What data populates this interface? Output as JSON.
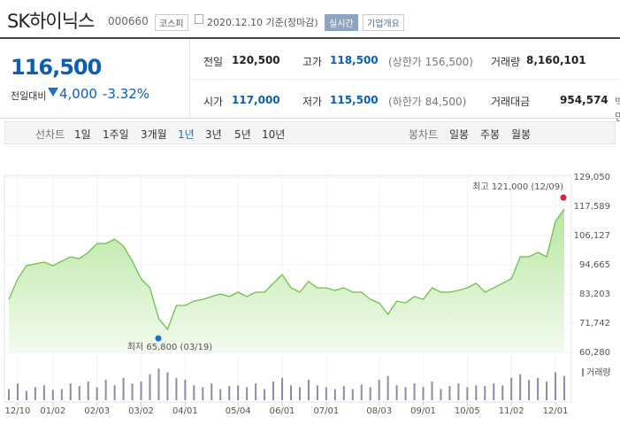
{
  "header": {
    "title": "SK하이닉스",
    "code": "000660",
    "market": "코스피",
    "date": "2020.12.10 기준(장마감)",
    "realtime": "실시간",
    "company": "기업개요"
  },
  "quote": {
    "price": "116,500",
    "change_label": "전일대비",
    "change": "4,000",
    "change_rate": "-3.32%",
    "items": [
      {
        "label": "전일",
        "value": "120,500"
      },
      {
        "label": "고가",
        "value": "118,500",
        "note": "(상한가 156,500)"
      },
      {
        "label": "거래량",
        "value": "8,160,101"
      },
      {
        "label": "시가",
        "value": "117,000"
      },
      {
        "label": "저가",
        "value": "115,500",
        "note": "(하한가 84,500)"
      },
      {
        "label": "거래대금",
        "value": "954,574",
        "note": "백만"
      }
    ]
  },
  "toolbar": {
    "line_label": "선차트",
    "line_periods": [
      "1일",
      "1주일",
      "3개월",
      "1년",
      "3년",
      "5년",
      "10년"
    ],
    "selected": "1년",
    "candle_label": "봉차트",
    "candle_periods": [
      "일봉",
      "주봉",
      "월봉"
    ]
  },
  "chart_data": [
    {
      "type": "line",
      "color": "#6cc04a",
      "categories": [
        null,
        "12/10",
        null,
        null,
        null,
        "01/02",
        null,
        null,
        null,
        null,
        "02/03",
        null,
        null,
        null,
        null,
        "03/02",
        null,
        null,
        null,
        null,
        "04/01",
        null,
        null,
        null,
        null,
        null,
        "05/04",
        null,
        null,
        null,
        null,
        "06/01",
        null,
        null,
        null,
        null,
        "07/01",
        null,
        null,
        null,
        null,
        null,
        "08/03",
        null,
        null,
        null,
        null,
        "09/01",
        null,
        null,
        null,
        null,
        "10/05",
        null,
        null,
        null,
        null,
        "11/02",
        null,
        null,
        null,
        null,
        "12/01",
        null
      ],
      "values": [
        81100,
        89100,
        94300,
        95000,
        95700,
        94300,
        96100,
        97800,
        97100,
        99500,
        103000,
        103000,
        104700,
        102000,
        96100,
        89100,
        85600,
        73500,
        69300,
        78700,
        78700,
        80400,
        81100,
        82200,
        83200,
        82200,
        83900,
        82200,
        83900,
        83900,
        87400,
        90800,
        85600,
        83900,
        88100,
        85600,
        85600,
        84600,
        85600,
        83900,
        83900,
        81100,
        79700,
        75200,
        80400,
        79700,
        82200,
        81100,
        85600,
        83900,
        83900,
        84600,
        85600,
        87400,
        83900,
        85600,
        87400,
        89100,
        97800,
        97800,
        99500,
        97800,
        111700,
        116500
      ],
      "ylim": [
        60280,
        129050
      ],
      "yticks": [
        {
          "value": 60280,
          "label": "60,280"
        },
        {
          "value": 71742,
          "label": "71,742"
        },
        {
          "value": 83203,
          "label": "83,203"
        },
        {
          "value": 94665,
          "label": "94,665"
        },
        {
          "value": 106127,
          "label": "106,127"
        },
        {
          "value": 117589,
          "label": "117,589"
        },
        {
          "value": 129050,
          "label": "129,050"
        }
      ],
      "high": {
        "value": 121000,
        "label": "최고 121,000 (12/09)",
        "color": "#e0212b"
      },
      "low": {
        "value": 65800,
        "label": "최저 65,800 (03/19)",
        "color": "#1d6fd8"
      }
    },
    {
      "type": "bar",
      "name": "거래량",
      "color": "#8d89a8",
      "ylim": [
        0,
        100
      ],
      "values": [
        30,
        45,
        25,
        35,
        40,
        28,
        30,
        45,
        38,
        50,
        35,
        55,
        40,
        60,
        45,
        50,
        70,
        85,
        75,
        60,
        55,
        40,
        35,
        45,
        30,
        38,
        40,
        35,
        45,
        30,
        50,
        60,
        40,
        35,
        55,
        40,
        35,
        30,
        38,
        30,
        42,
        35,
        55,
        65,
        40,
        35,
        45,
        35,
        50,
        30,
        38,
        45,
        35,
        40,
        38,
        45,
        40,
        60,
        70,
        55,
        60,
        50,
        75,
        65
      ]
    }
  ]
}
